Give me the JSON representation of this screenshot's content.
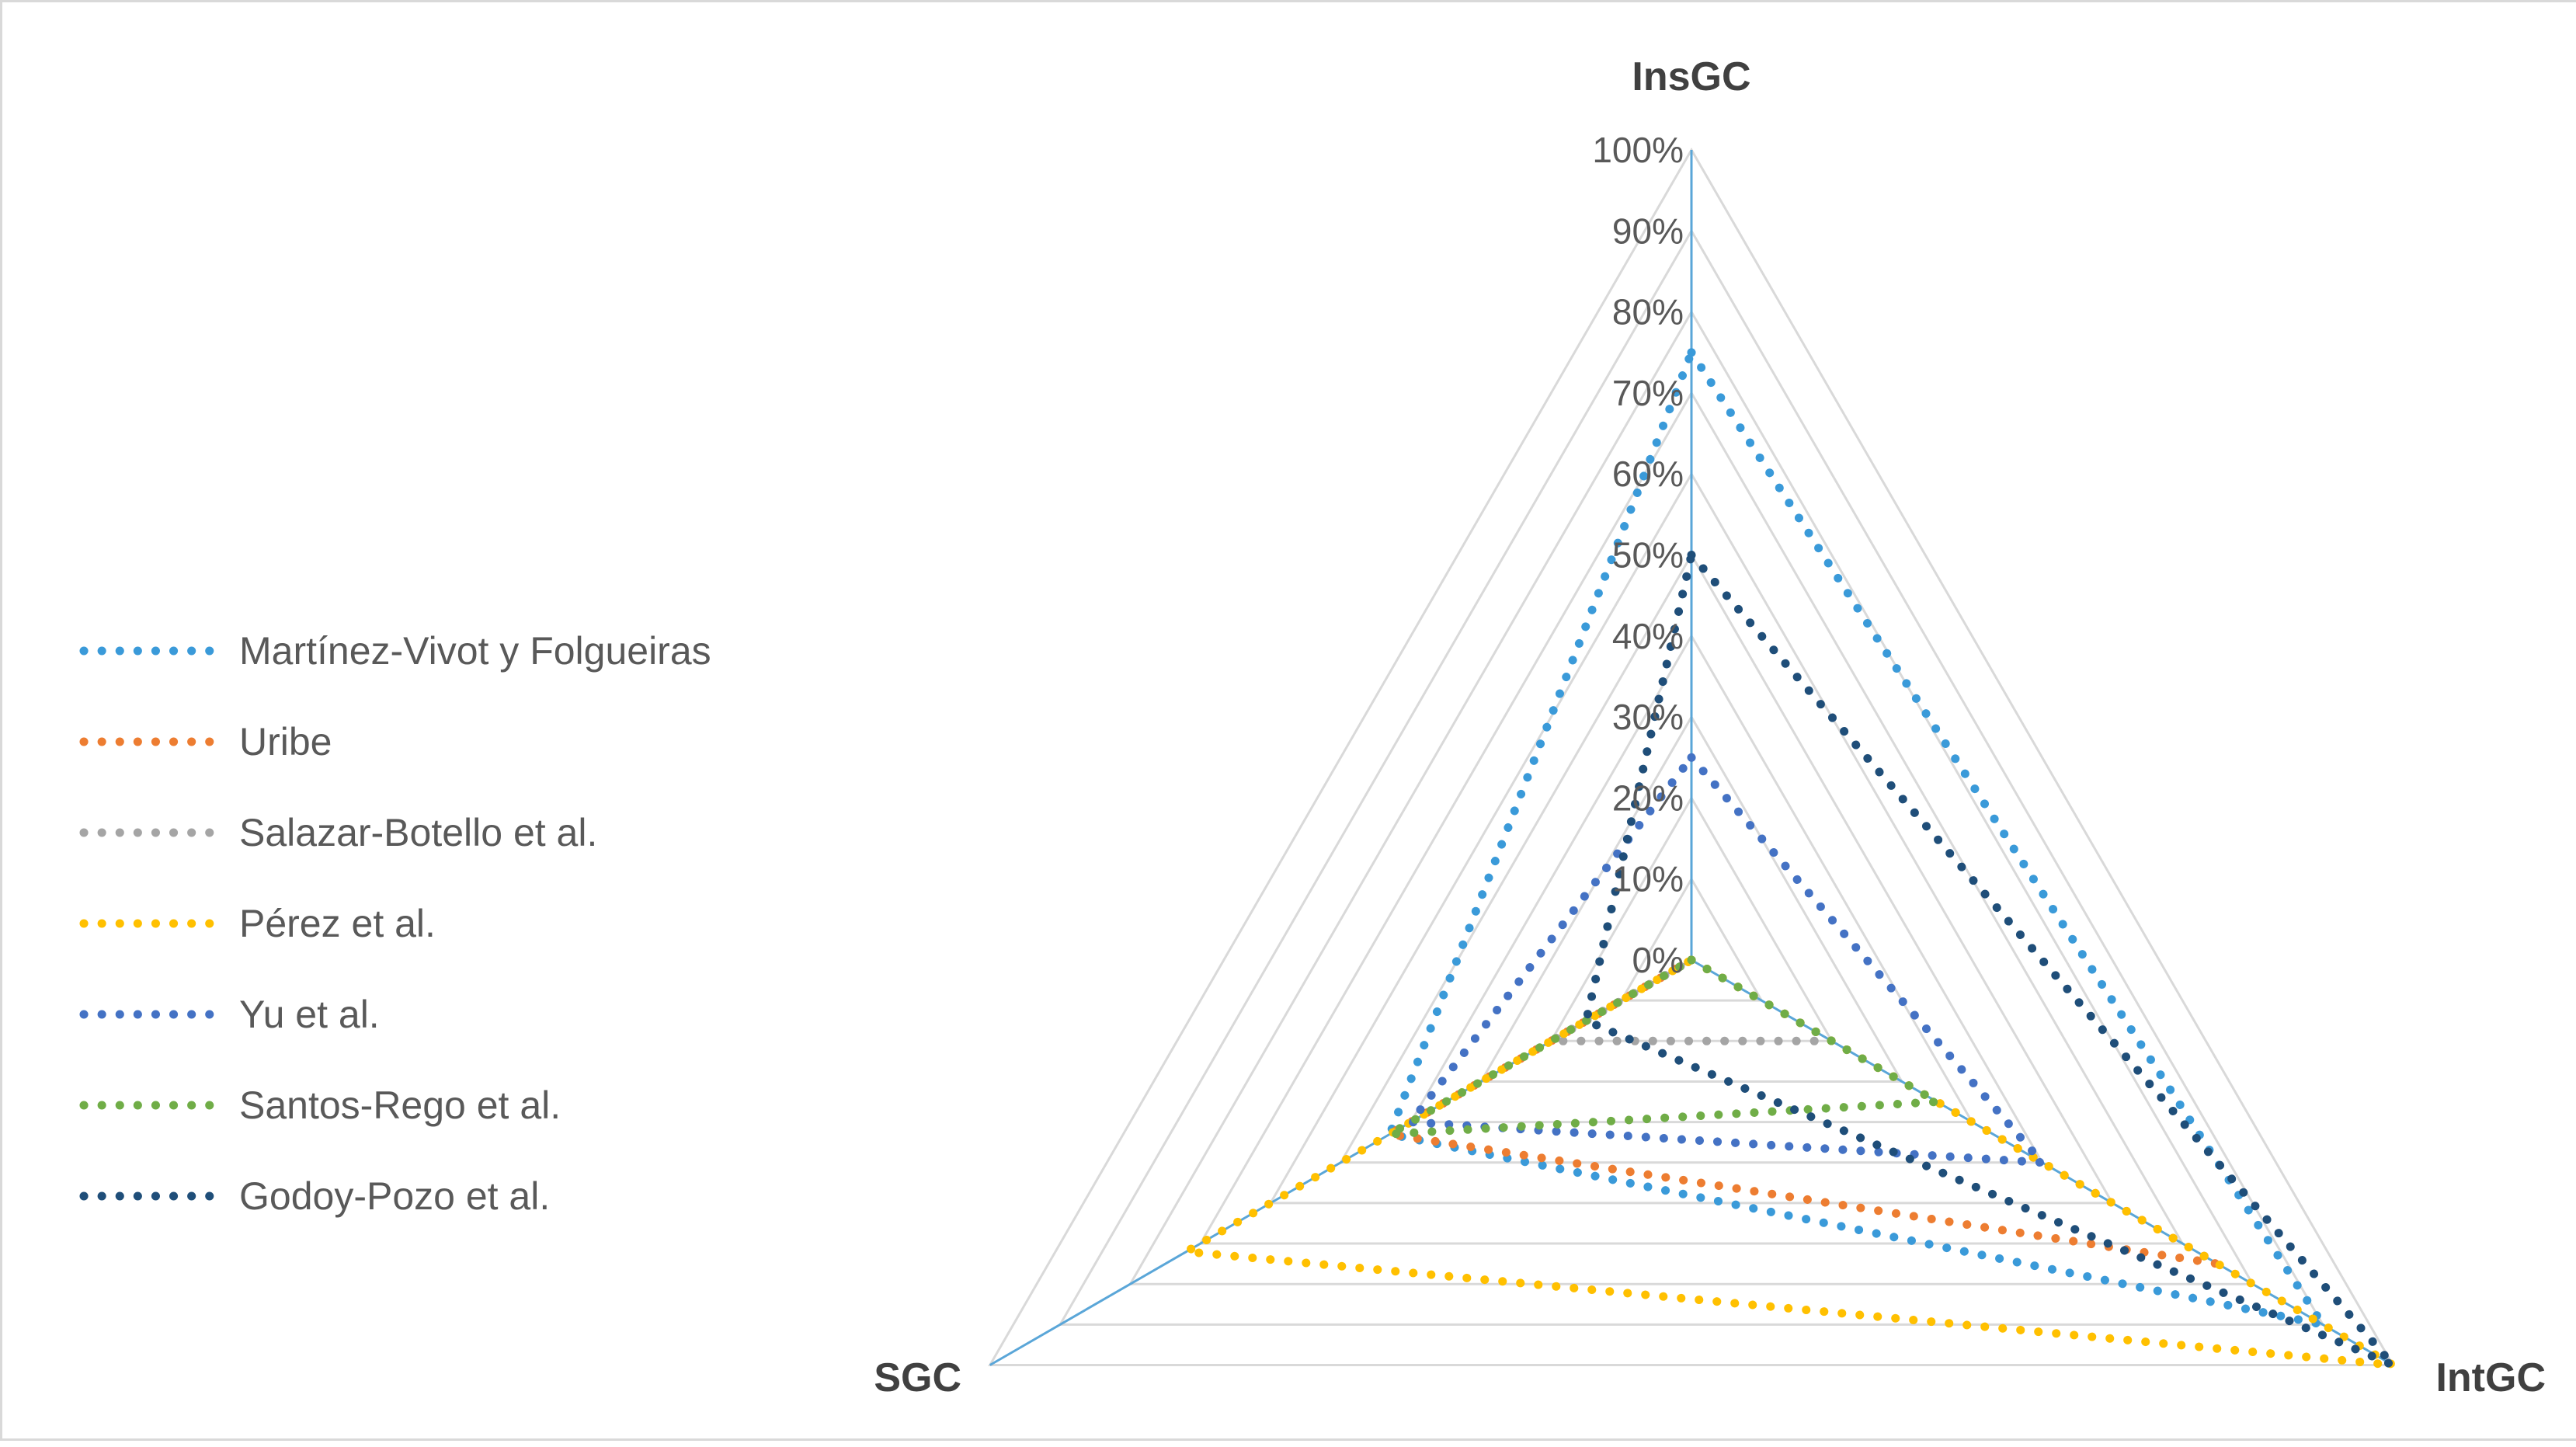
{
  "chart_data": {
    "type": "radar",
    "axes": [
      "InsGC",
      "IntGC",
      "SGC"
    ],
    "r_ticks": [
      "0%",
      "10%",
      "20%",
      "30%",
      "40%",
      "50%",
      "60%",
      "70%",
      "80%",
      "90%",
      "100%"
    ],
    "r_range": [
      0,
      100
    ],
    "grid": true,
    "legend_position": "left",
    "series": [
      {
        "name": "Martínez-Vivot y Folgueiras",
        "color": "#3a9ad9",
        "values": [
          75,
          90,
          43
        ]
      },
      {
        "name": "Uribe",
        "color": "#ed7d31",
        "values": [
          0,
          75,
          43
        ]
      },
      {
        "name": "Salazar-Botello et al.",
        "color": "#a5a5a5",
        "values": [
          0,
          20,
          20
        ]
      },
      {
        "name": "Pérez et al.",
        "color": "#ffc000",
        "values": [
          0,
          100,
          72
        ]
      },
      {
        "name": "Yu et al.",
        "color": "#4472c4",
        "values": [
          25,
          50,
          40
        ]
      },
      {
        "name": "Santos-Rego et al.",
        "color": "#70ad47",
        "values": [
          0,
          35,
          43
        ]
      },
      {
        "name": "Godoy-Pozo et al.",
        "color": "#1f4e79",
        "values": [
          50,
          100,
          15
        ]
      }
    ]
  }
}
